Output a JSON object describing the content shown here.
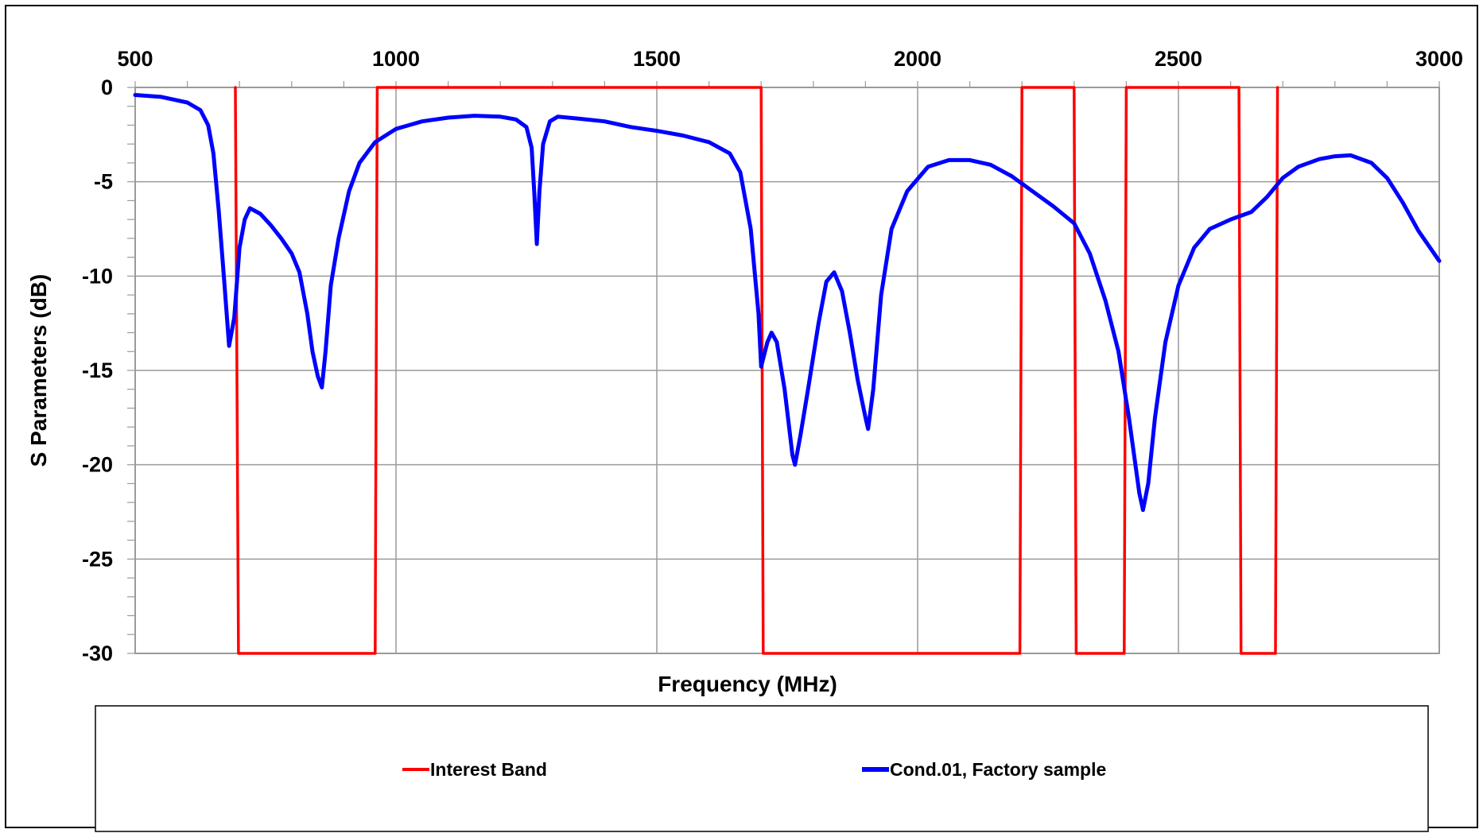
{
  "chart_data": {
    "type": "line",
    "xlabel": "Frequency (MHz)",
    "ylabel": "S Parameters (dB)",
    "xlim": [
      500,
      3000
    ],
    "ylim": [
      -30,
      0
    ],
    "x_ticks": [
      "500",
      "1000",
      "1500",
      "2000",
      "2500",
      "3000"
    ],
    "y_ticks": [
      "0",
      "-5",
      "-10",
      "-15",
      "-20",
      "-25",
      "-30"
    ],
    "x_axis_position": "top",
    "grid": true,
    "legend_position": "bottom",
    "colors": {
      "interest_band": "#ff0000",
      "sample": "#0000ff"
    },
    "series": [
      {
        "name": "Interest Band",
        "color": "#ff0000",
        "points": [
          [
            692,
            0
          ],
          [
            698,
            -30
          ],
          [
            960,
            -30
          ],
          [
            964,
            0
          ],
          [
            1700,
            0
          ],
          [
            1704,
            -30
          ],
          [
            2196,
            -30
          ],
          [
            2200,
            0
          ],
          [
            2300,
            0
          ],
          [
            2304,
            -30
          ],
          [
            2396,
            -30
          ],
          [
            2400,
            0
          ],
          [
            2616,
            0
          ],
          [
            2620,
            -30
          ],
          [
            2686,
            -30
          ],
          [
            2690,
            0
          ]
        ]
      },
      {
        "name": "Cond.01, Factory sample",
        "color": "#0000ff",
        "points": [
          [
            500,
            -0.4
          ],
          [
            550,
            -0.5
          ],
          [
            600,
            -0.8
          ],
          [
            625,
            -1.2
          ],
          [
            640,
            -2
          ],
          [
            650,
            -3.5
          ],
          [
            660,
            -6.5
          ],
          [
            670,
            -10
          ],
          [
            680,
            -13.7
          ],
          [
            690,
            -12.2
          ],
          [
            700,
            -8.5
          ],
          [
            710,
            -7
          ],
          [
            720,
            -6.4
          ],
          [
            740,
            -6.7
          ],
          [
            760,
            -7.3
          ],
          [
            780,
            -8
          ],
          [
            800,
            -8.8
          ],
          [
            815,
            -9.8
          ],
          [
            830,
            -12
          ],
          [
            840,
            -14
          ],
          [
            850,
            -15.3
          ],
          [
            858,
            -15.9
          ],
          [
            865,
            -14
          ],
          [
            875,
            -10.5
          ],
          [
            890,
            -8
          ],
          [
            910,
            -5.5
          ],
          [
            930,
            -4
          ],
          [
            960,
            -2.9
          ],
          [
            1000,
            -2.2
          ],
          [
            1050,
            -1.8
          ],
          [
            1100,
            -1.6
          ],
          [
            1150,
            -1.5
          ],
          [
            1200,
            -1.55
          ],
          [
            1230,
            -1.7
          ],
          [
            1250,
            -2.1
          ],
          [
            1260,
            -3.2
          ],
          [
            1265,
            -5.5
          ],
          [
            1270,
            -8.3
          ],
          [
            1275,
            -5.5
          ],
          [
            1282,
            -3
          ],
          [
            1295,
            -1.8
          ],
          [
            1310,
            -1.55
          ],
          [
            1350,
            -1.65
          ],
          [
            1400,
            -1.8
          ],
          [
            1450,
            -2.1
          ],
          [
            1500,
            -2.3
          ],
          [
            1550,
            -2.55
          ],
          [
            1600,
            -2.9
          ],
          [
            1640,
            -3.5
          ],
          [
            1660,
            -4.5
          ],
          [
            1680,
            -7.5
          ],
          [
            1695,
            -12
          ],
          [
            1700,
            -14.8
          ],
          [
            1712,
            -13.5
          ],
          [
            1720,
            -13
          ],
          [
            1730,
            -13.5
          ],
          [
            1745,
            -16
          ],
          [
            1760,
            -19.5
          ],
          [
            1765,
            -20
          ],
          [
            1775,
            -18.5
          ],
          [
            1790,
            -16
          ],
          [
            1810,
            -12.5
          ],
          [
            1825,
            -10.3
          ],
          [
            1840,
            -9.8
          ],
          [
            1855,
            -10.8
          ],
          [
            1870,
            -13
          ],
          [
            1885,
            -15.5
          ],
          [
            1900,
            -17.5
          ],
          [
            1905,
            -18.1
          ],
          [
            1915,
            -16
          ],
          [
            1930,
            -11
          ],
          [
            1950,
            -7.5
          ],
          [
            1980,
            -5.5
          ],
          [
            2020,
            -4.2
          ],
          [
            2060,
            -3.85
          ],
          [
            2100,
            -3.85
          ],
          [
            2140,
            -4.1
          ],
          [
            2180,
            -4.7
          ],
          [
            2220,
            -5.5
          ],
          [
            2260,
            -6.3
          ],
          [
            2300,
            -7.2
          ],
          [
            2330,
            -8.8
          ],
          [
            2360,
            -11.3
          ],
          [
            2385,
            -14
          ],
          [
            2405,
            -17.5
          ],
          [
            2425,
            -21.5
          ],
          [
            2432,
            -22.4
          ],
          [
            2442,
            -21
          ],
          [
            2455,
            -17.5
          ],
          [
            2475,
            -13.5
          ],
          [
            2500,
            -10.5
          ],
          [
            2530,
            -8.5
          ],
          [
            2560,
            -7.5
          ],
          [
            2600,
            -7.0
          ],
          [
            2640,
            -6.6
          ],
          [
            2670,
            -5.8
          ],
          [
            2700,
            -4.8
          ],
          [
            2730,
            -4.2
          ],
          [
            2770,
            -3.8
          ],
          [
            2800,
            -3.65
          ],
          [
            2830,
            -3.6
          ],
          [
            2870,
            -4
          ],
          [
            2900,
            -4.8
          ],
          [
            2930,
            -6.1
          ],
          [
            2960,
            -7.6
          ],
          [
            3000,
            -9.2
          ]
        ]
      }
    ]
  }
}
